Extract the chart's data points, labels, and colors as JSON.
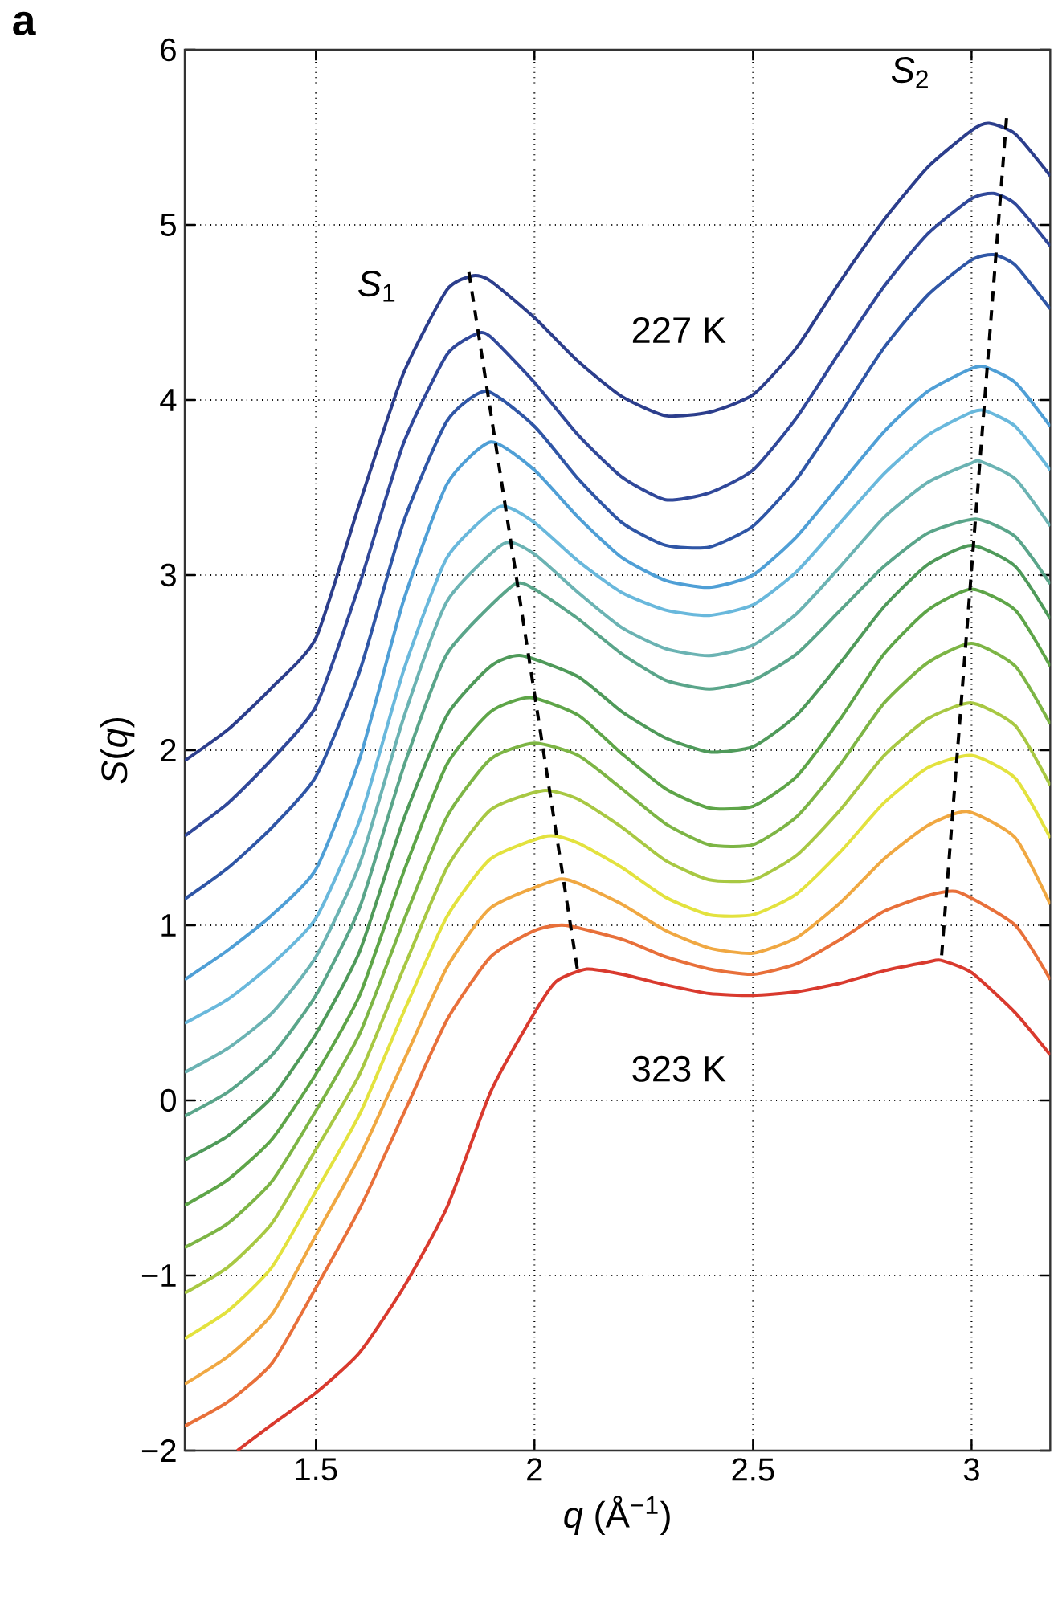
{
  "chart_data": {
    "type": "line",
    "title": "a",
    "xlabel": "*q* (Å$^{−1}$)",
    "ylabel": "*S*(*q*)",
    "xlim": [
      1.2,
      3.18
    ],
    "xticks": [
      1.5,
      2,
      2.5,
      3
    ],
    "ylim": [
      -2,
      6
    ],
    "yticks": [
      {
        "value": -2,
        "label": "−2"
      },
      {
        "value": -1,
        "label": "−1"
      },
      0,
      1,
      2,
      3,
      4,
      5,
      6
    ],
    "grid": true,
    "marker": "none",
    "line_style": "solid",
    "annotations": [
      "*S*$_{1}$",
      "*S*$_{2}$",
      "227 K",
      "323 K"
    ],
    "series": [
      {
        "color": "#2c3e8c",
        "x": [
          1.2,
          1.3,
          1.4,
          1.5,
          1.6,
          1.7,
          1.8,
          1.86,
          1.9,
          2.0,
          2.1,
          2.2,
          2.3,
          2.4,
          2.5,
          2.6,
          2.7,
          2.8,
          2.9,
          3.0,
          3.04,
          3.1,
          3.18
        ],
        "values": [
          1.94,
          2.12,
          2.36,
          2.64,
          3.41,
          4.15,
          4.63,
          4.71,
          4.68,
          4.47,
          4.22,
          4.02,
          3.91,
          3.93,
          4.03,
          4.3,
          4.68,
          5.03,
          5.33,
          5.54,
          5.58,
          5.52,
          5.28
        ]
      },
      {
        "color": "#30489a",
        "x": [
          1.2,
          1.3,
          1.4,
          1.5,
          1.6,
          1.7,
          1.8,
          1.87,
          1.9,
          2.0,
          2.1,
          2.2,
          2.3,
          2.4,
          2.5,
          2.6,
          2.7,
          2.8,
          2.9,
          3.0,
          3.05,
          3.1,
          3.18
        ],
        "values": [
          1.51,
          1.7,
          1.95,
          2.25,
          2.95,
          3.75,
          4.26,
          4.38,
          4.36,
          4.1,
          3.8,
          3.56,
          3.43,
          3.47,
          3.6,
          3.9,
          4.28,
          4.65,
          4.95,
          5.15,
          5.18,
          5.12,
          4.88
        ]
      },
      {
        "color": "#2f56a6",
        "x": [
          1.2,
          1.3,
          1.4,
          1.5,
          1.6,
          1.7,
          1.8,
          1.89,
          2.0,
          2.1,
          2.2,
          2.3,
          2.4,
          2.5,
          2.6,
          2.7,
          2.8,
          2.9,
          3.0,
          3.05,
          3.1,
          3.18
        ],
        "values": [
          1.15,
          1.33,
          1.56,
          1.85,
          2.45,
          3.3,
          3.88,
          4.05,
          3.85,
          3.55,
          3.3,
          3.17,
          3.16,
          3.28,
          3.55,
          3.92,
          4.3,
          4.6,
          4.8,
          4.83,
          4.77,
          4.52
        ]
      },
      {
        "color": "#4f9fd6",
        "x": [
          1.2,
          1.3,
          1.4,
          1.5,
          1.6,
          1.7,
          1.8,
          1.9,
          2.0,
          2.1,
          2.2,
          2.3,
          2.4,
          2.5,
          2.6,
          2.7,
          2.8,
          2.9,
          3.0,
          3.03,
          3.1,
          3.18
        ],
        "values": [
          0.69,
          0.86,
          1.06,
          1.32,
          1.95,
          2.85,
          3.52,
          3.76,
          3.6,
          3.33,
          3.1,
          2.97,
          2.93,
          3.0,
          3.22,
          3.52,
          3.82,
          4.05,
          4.18,
          4.19,
          4.1,
          3.85
        ]
      },
      {
        "color": "#69b8dc",
        "x": [
          1.2,
          1.3,
          1.4,
          1.5,
          1.6,
          1.7,
          1.8,
          1.92,
          2.0,
          2.1,
          2.2,
          2.3,
          2.4,
          2.5,
          2.6,
          2.7,
          2.8,
          2.9,
          3.0,
          3.03,
          3.1,
          3.18
        ],
        "values": [
          0.44,
          0.58,
          0.78,
          1.04,
          1.6,
          2.45,
          3.1,
          3.39,
          3.3,
          3.08,
          2.9,
          2.8,
          2.77,
          2.83,
          3.02,
          3.3,
          3.58,
          3.8,
          3.93,
          3.94,
          3.85,
          3.6
        ]
      },
      {
        "color": "#6bb3b3",
        "x": [
          1.2,
          1.3,
          1.4,
          1.5,
          1.6,
          1.7,
          1.8,
          1.93,
          2.0,
          2.1,
          2.2,
          2.3,
          2.4,
          2.5,
          2.6,
          2.7,
          2.8,
          2.9,
          3.0,
          3.02,
          3.1,
          3.18
        ],
        "values": [
          0.16,
          0.3,
          0.5,
          0.82,
          1.35,
          2.18,
          2.85,
          3.18,
          3.12,
          2.9,
          2.7,
          2.58,
          2.54,
          2.6,
          2.78,
          3.05,
          3.33,
          3.53,
          3.64,
          3.65,
          3.55,
          3.28
        ]
      },
      {
        "color": "#5aa58a",
        "x": [
          1.2,
          1.3,
          1.4,
          1.5,
          1.6,
          1.7,
          1.8,
          1.95,
          2.0,
          2.1,
          2.2,
          2.3,
          2.4,
          2.5,
          2.6,
          2.7,
          2.8,
          2.9,
          3.01,
          3.1,
          3.18
        ],
        "values": [
          -0.09,
          0.05,
          0.26,
          0.6,
          1.1,
          1.9,
          2.55,
          2.94,
          2.92,
          2.75,
          2.55,
          2.4,
          2.35,
          2.4,
          2.55,
          2.8,
          3.05,
          3.24,
          3.32,
          3.22,
          2.95
        ]
      },
      {
        "color": "#4f9a5a",
        "x": [
          1.2,
          1.3,
          1.4,
          1.5,
          1.6,
          1.7,
          1.8,
          1.9,
          1.97,
          2.1,
          2.2,
          2.3,
          2.4,
          2.5,
          2.6,
          2.7,
          2.8,
          2.9,
          3.0,
          3.1,
          3.18
        ],
        "values": [
          -0.34,
          -0.2,
          0.02,
          0.38,
          0.85,
          1.6,
          2.2,
          2.48,
          2.54,
          2.42,
          2.22,
          2.07,
          1.99,
          2.02,
          2.2,
          2.5,
          2.82,
          3.06,
          3.17,
          3.05,
          2.75
        ]
      },
      {
        "color": "#5ea548",
        "x": [
          1.2,
          1.3,
          1.4,
          1.5,
          1.6,
          1.7,
          1.8,
          1.9,
          1.99,
          2.1,
          2.2,
          2.3,
          2.4,
          2.5,
          2.6,
          2.7,
          2.8,
          2.9,
          3.0,
          3.1,
          3.18
        ],
        "values": [
          -0.6,
          -0.45,
          -0.22,
          0.15,
          0.6,
          1.3,
          1.92,
          2.22,
          2.3,
          2.2,
          1.98,
          1.78,
          1.67,
          1.68,
          1.85,
          2.18,
          2.55,
          2.8,
          2.92,
          2.8,
          2.48
        ]
      },
      {
        "color": "#7db545",
        "x": [
          1.2,
          1.3,
          1.4,
          1.5,
          1.6,
          1.7,
          1.8,
          1.9,
          2.0,
          2.1,
          2.2,
          2.3,
          2.4,
          2.5,
          2.6,
          2.7,
          2.8,
          2.9,
          3.0,
          3.1,
          3.18
        ],
        "values": [
          -0.84,
          -0.7,
          -0.46,
          -0.06,
          0.38,
          1.02,
          1.62,
          1.95,
          2.04,
          1.97,
          1.78,
          1.58,
          1.46,
          1.46,
          1.62,
          1.92,
          2.27,
          2.5,
          2.61,
          2.48,
          2.15
        ]
      },
      {
        "color": "#a8c843",
        "x": [
          1.2,
          1.3,
          1.4,
          1.5,
          1.6,
          1.7,
          1.8,
          1.9,
          2.02,
          2.1,
          2.2,
          2.3,
          2.4,
          2.5,
          2.6,
          2.7,
          2.8,
          2.9,
          3.0,
          3.1,
          3.18
        ],
        "values": [
          -1.1,
          -0.95,
          -0.7,
          -0.28,
          0.15,
          0.75,
          1.33,
          1.66,
          1.77,
          1.72,
          1.56,
          1.37,
          1.26,
          1.26,
          1.4,
          1.66,
          1.97,
          2.18,
          2.27,
          2.14,
          1.8
        ]
      },
      {
        "color": "#e3e23e",
        "x": [
          1.2,
          1.3,
          1.4,
          1.5,
          1.6,
          1.7,
          1.8,
          1.9,
          2.03,
          2.1,
          2.2,
          2.3,
          2.4,
          2.5,
          2.6,
          2.7,
          2.8,
          2.9,
          3.0,
          3.1,
          3.18
        ],
        "values": [
          -1.36,
          -1.2,
          -0.95,
          -0.52,
          -0.08,
          0.5,
          1.05,
          1.38,
          1.51,
          1.47,
          1.33,
          1.16,
          1.06,
          1.06,
          1.18,
          1.42,
          1.7,
          1.9,
          1.97,
          1.84,
          1.5
        ]
      },
      {
        "color": "#f0a842",
        "x": [
          1.2,
          1.3,
          1.4,
          1.5,
          1.6,
          1.7,
          1.8,
          1.9,
          2.05,
          2.1,
          2.2,
          2.3,
          2.4,
          2.5,
          2.6,
          2.7,
          2.8,
          2.9,
          2.99,
          3.1,
          3.18
        ],
        "values": [
          -1.62,
          -1.46,
          -1.22,
          -0.77,
          -0.32,
          0.22,
          0.76,
          1.1,
          1.26,
          1.24,
          1.12,
          0.97,
          0.87,
          0.84,
          0.93,
          1.13,
          1.38,
          1.57,
          1.65,
          1.5,
          1.12
        ]
      },
      {
        "color": "#e8703a",
        "x": [
          1.2,
          1.3,
          1.4,
          1.5,
          1.6,
          1.7,
          1.8,
          1.9,
          2.0,
          2.07,
          2.2,
          2.3,
          2.4,
          2.5,
          2.6,
          2.7,
          2.8,
          2.9,
          2.97,
          3.1,
          3.18
        ],
        "values": [
          -1.86,
          -1.72,
          -1.5,
          -1.07,
          -0.62,
          -0.08,
          0.46,
          0.82,
          0.97,
          1.0,
          0.92,
          0.82,
          0.75,
          0.72,
          0.78,
          0.92,
          1.08,
          1.17,
          1.19,
          1.0,
          0.69
        ]
      },
      {
        "color": "#d93a2e",
        "x": [
          1.32,
          1.4,
          1.5,
          1.6,
          1.7,
          1.8,
          1.9,
          2.0,
          2.05,
          2.12,
          2.2,
          2.3,
          2.4,
          2.5,
          2.6,
          2.7,
          2.8,
          2.9,
          2.93,
          3.0,
          3.1,
          3.18
        ],
        "values": [
          -2,
          -1.85,
          -1.67,
          -1.44,
          -1.07,
          -0.61,
          0.05,
          0.5,
          0.68,
          0.75,
          0.72,
          0.66,
          0.61,
          0.6,
          0.62,
          0.67,
          0.74,
          0.79,
          0.8,
          0.73,
          0.5,
          0.26
        ]
      },
      {
        "type": "line",
        "color": "#000000",
        "line_style": "dashed",
        "x": [
          1.85,
          2.1
        ],
        "values": [
          4.73,
          0.72
        ]
      },
      {
        "type": "line",
        "color": "#000000",
        "line_style": "dashed",
        "x": [
          3.08,
          2.93
        ],
        "values": [
          5.61,
          0.78
        ]
      }
    ]
  }
}
